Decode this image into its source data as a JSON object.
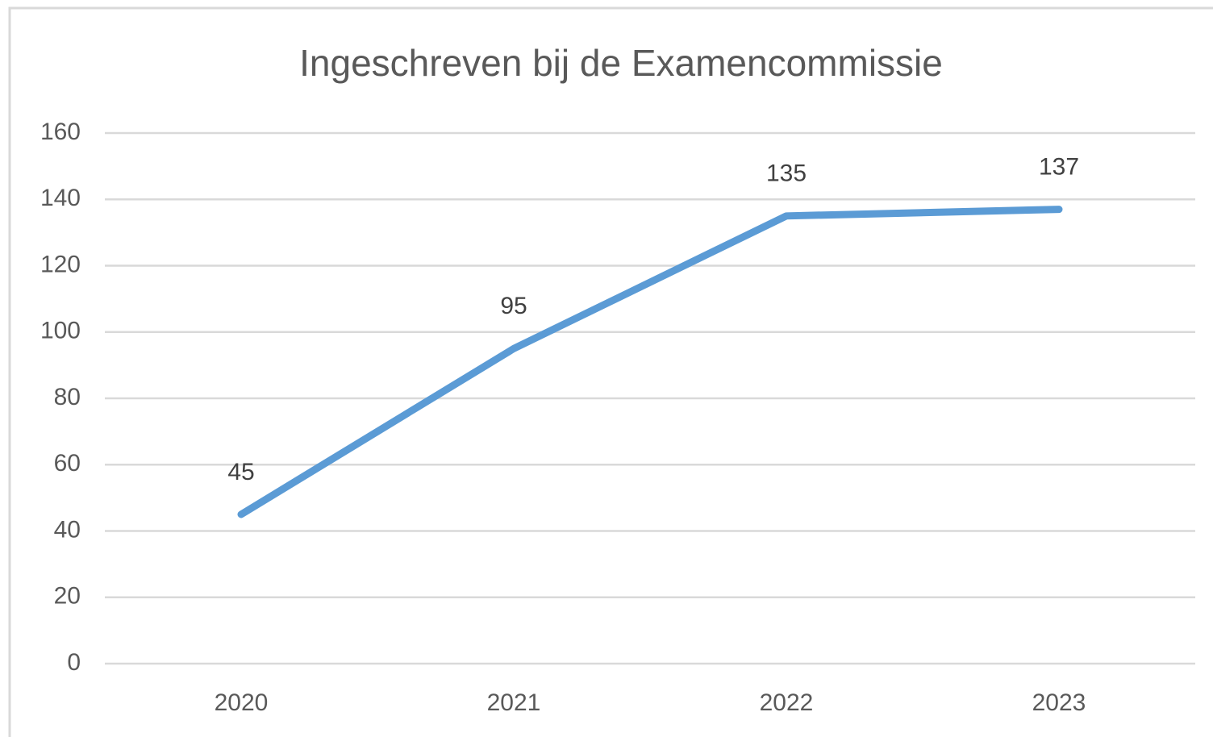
{
  "chart_data": {
    "type": "line",
    "title": "Ingeschreven bij de Examencommissie",
    "categories": [
      "2020",
      "2021",
      "2022",
      "2023"
    ],
    "series": [
      {
        "name": "Ingeschreven",
        "color": "#5b9bd5",
        "values": [
          45,
          95,
          135,
          137
        ]
      }
    ],
    "ylim": [
      0,
      160
    ],
    "yticks": [
      0,
      20,
      40,
      60,
      80,
      100,
      120,
      140,
      160
    ],
    "grid": true,
    "data_labels": true
  }
}
